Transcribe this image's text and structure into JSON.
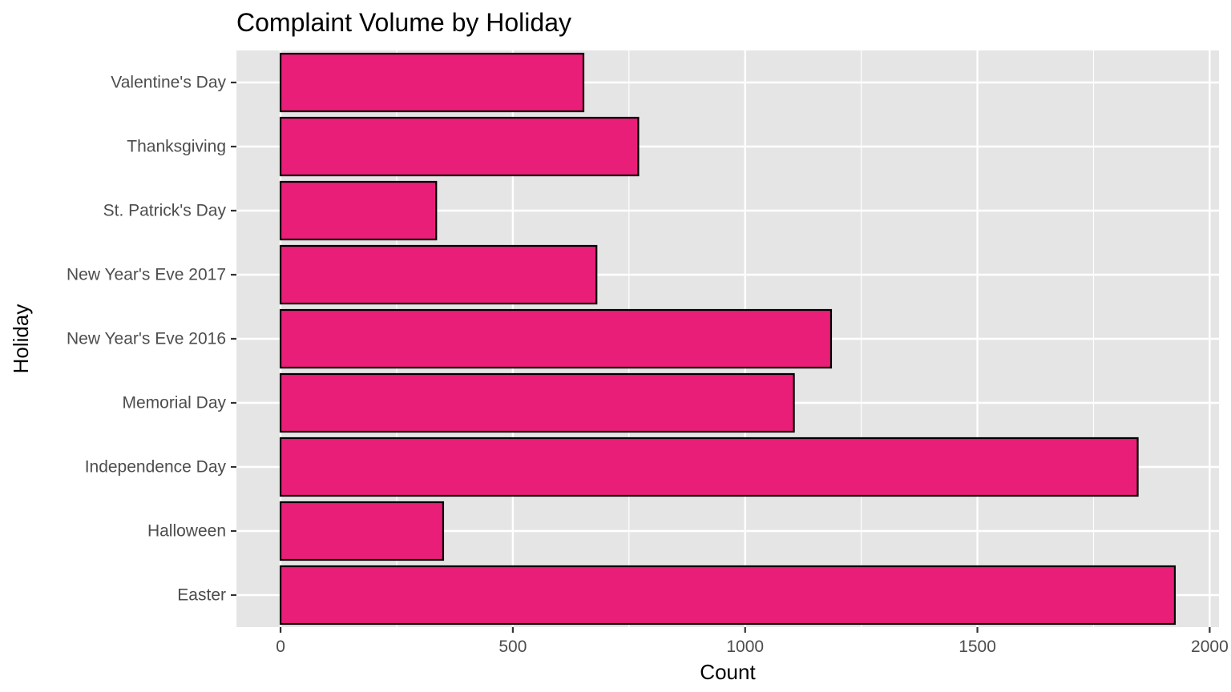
{
  "chart_data": {
    "type": "bar",
    "orientation": "horizontal",
    "title": "Complaint Volume by Holiday",
    "xlabel": "Count",
    "ylabel": "Holiday",
    "categories": [
      "Easter",
      "Halloween",
      "Independence Day",
      "Memorial Day",
      "New Year's Eve 2016",
      "New Year's Eve 2017",
      "St. Patrick's Day",
      "Thanksgiving",
      "Valentine's Day"
    ],
    "values": [
      1925,
      350,
      1845,
      1105,
      1185,
      680,
      335,
      770,
      652
    ],
    "xlim": [
      -95,
      2020
    ],
    "x_ticks": [
      0,
      500,
      1000,
      1500,
      2000
    ],
    "x_tick_labels": [
      "0",
      "500",
      "1000",
      "1500",
      "2000"
    ],
    "grid": true,
    "legend": "none",
    "colors": {
      "bar_fill": "#E91E78",
      "bar_stroke": "#000000",
      "panel_background": "#E5E5E5",
      "grid": "#FFFFFF"
    }
  }
}
